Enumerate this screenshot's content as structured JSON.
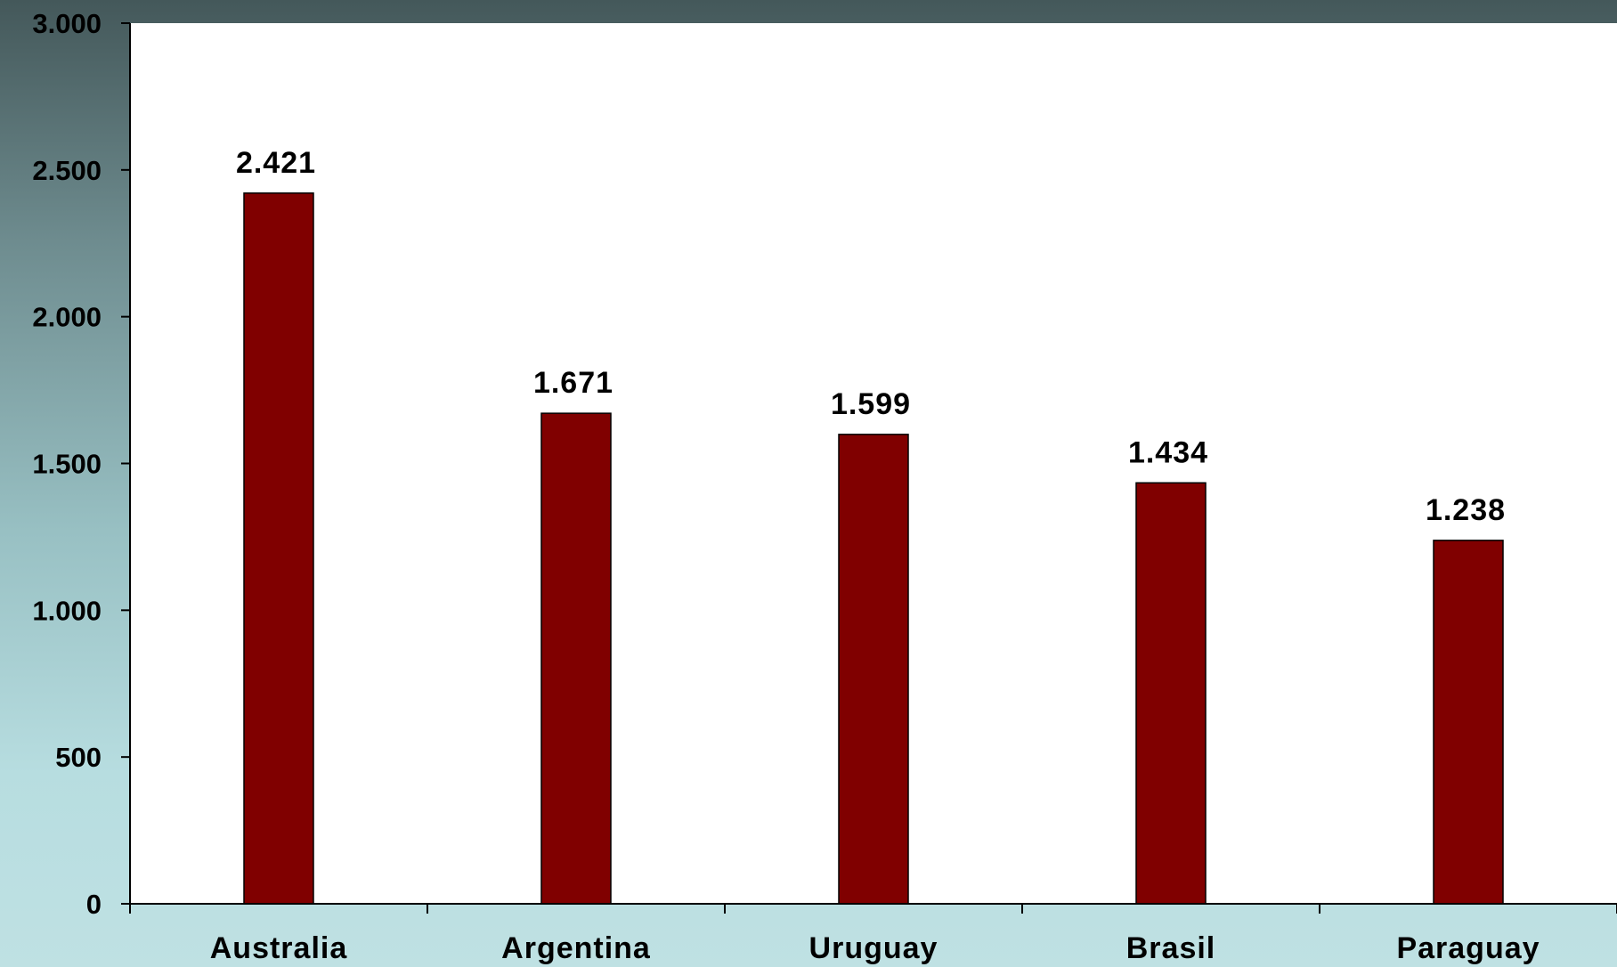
{
  "chart_data": {
    "type": "bar",
    "categories": [
      "Australia",
      "Argentina",
      "Uruguay",
      "Brasil",
      "Paraguay"
    ],
    "values": [
      2421,
      1671,
      1599,
      1434,
      1238
    ],
    "data_labels": [
      "2.421",
      "1.671",
      "1.599",
      "1.434",
      "1.238"
    ],
    "title": "",
    "xlabel": "",
    "ylabel": "",
    "ylim": [
      0,
      3000
    ],
    "yticks": [
      0,
      500,
      1000,
      1500,
      2000,
      2500,
      3000
    ],
    "ytick_labels": [
      "0",
      "500",
      "1.000",
      "1.500",
      "2.000",
      "2.500",
      "3.000"
    ],
    "grid": false,
    "legend": "none",
    "colors": {
      "bar": "#800000",
      "plot_background": "#ffffff",
      "axis": "#000000"
    }
  }
}
